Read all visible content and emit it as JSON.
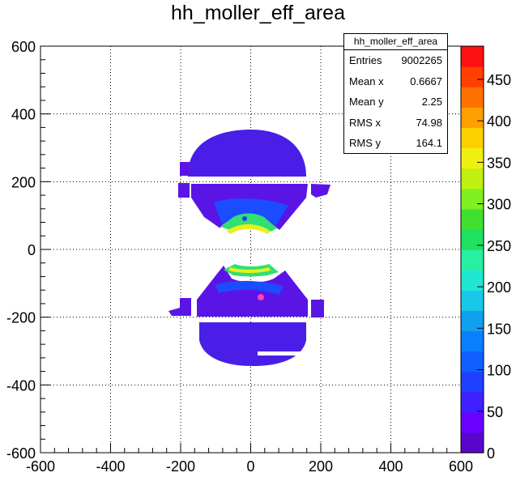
{
  "title": "hh_moller_eff_area",
  "stats": {
    "name": "hh_moller_eff_area",
    "rows": [
      {
        "label": "Entries",
        "value": "9002265"
      },
      {
        "label": "Mean x",
        "value": "0.6667"
      },
      {
        "label": "Mean y",
        "value": "2.25"
      },
      {
        "label": "RMS x",
        "value": "74.98"
      },
      {
        "label": "RMS y",
        "value": "164.1"
      }
    ]
  },
  "chart_data": {
    "type": "heatmap",
    "title": "hh_moller_eff_area",
    "xlim": [
      -600,
      600
    ],
    "ylim": [
      -600,
      600
    ],
    "x_ticks": [
      -600,
      -400,
      -200,
      0,
      200,
      400,
      600
    ],
    "y_ticks": [
      -600,
      -400,
      -200,
      0,
      200,
      400,
      600
    ],
    "x_tick_labels": [
      "-600",
      "-400",
      "-200",
      "0",
      "200",
      "400",
      "600"
    ],
    "y_tick_labels": [
      "-600",
      "-400",
      "-200",
      "0",
      "200",
      "400",
      "600"
    ],
    "grid": true,
    "z_range": [
      0,
      490
    ],
    "colorbar_ticks": [
      0,
      50,
      100,
      150,
      200,
      250,
      300,
      350,
      400,
      450
    ],
    "colorbar_tick_labels": [
      "0",
      "50",
      "100",
      "150",
      "200",
      "250",
      "300",
      "350",
      "400",
      "450"
    ],
    "colorbar_palette": [
      "#5a06ca",
      "#6a00ff",
      "#4020ff",
      "#2040ff",
      "#1060ff",
      "#0a80ff",
      "#10a0f0",
      "#18c8e8",
      "#20e8d0",
      "#28f0a0",
      "#20e060",
      "#40e030",
      "#80f020",
      "#c0f010",
      "#f0f010",
      "#ffd000",
      "#ffa000",
      "#ff7000",
      "#ff4000",
      "#ff1010"
    ],
    "regions": [
      {
        "name": "upper-lobe",
        "approx_x_range": [
          -210,
          230
        ],
        "approx_y_range": [
          45,
          335
        ],
        "typical_z": 40,
        "max_z": 300
      },
      {
        "name": "lower-lobe",
        "approx_x_range": [
          -230,
          225
        ],
        "approx_y_range": [
          -360,
          -45
        ],
        "typical_z": 40,
        "max_z": 300
      }
    ]
  }
}
